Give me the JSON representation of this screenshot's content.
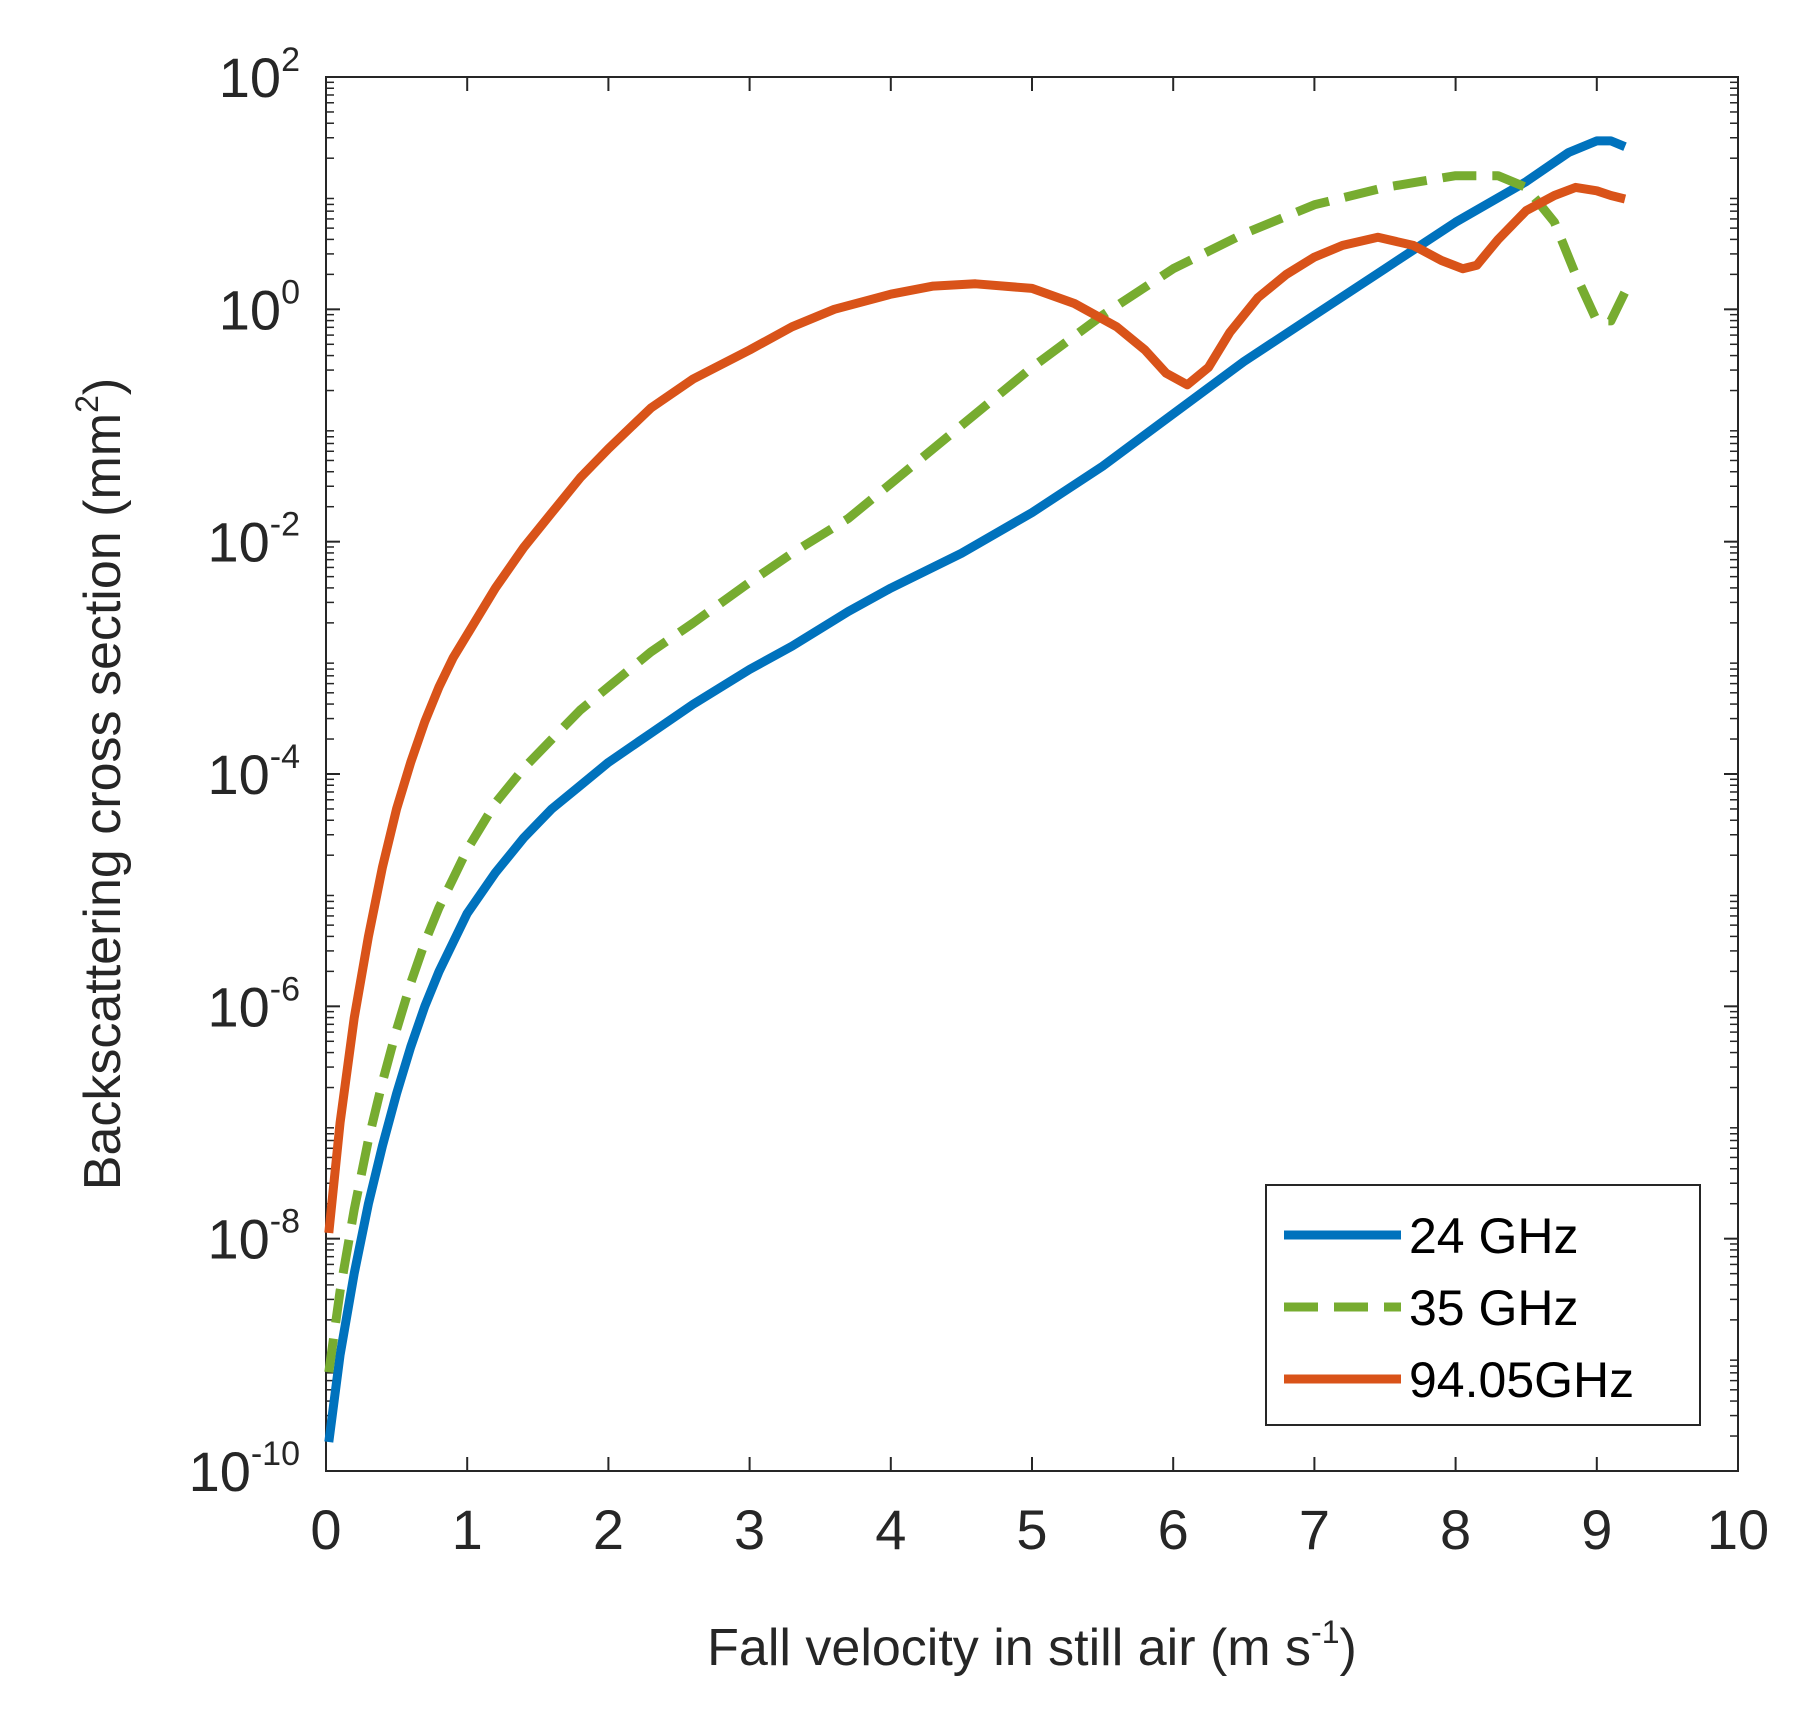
{
  "chart_data": {
    "type": "line",
    "title": "",
    "xlabel": "Fall velocity in still air (m s",
    "xlabel_sup": "-1",
    "xlabel_end": ")",
    "ylabel": "Backscattering cross section (mm",
    "ylabel_sup": "2",
    "ylabel_end": ")",
    "x_range": [
      0,
      10
    ],
    "y_scale": "log",
    "y_range_log10": [
      -10,
      2
    ],
    "x_ticks": [
      "0",
      "1",
      "2",
      "3",
      "4",
      "5",
      "6",
      "7",
      "8",
      "9",
      "10"
    ],
    "y_ticks": [
      {
        "base": "10",
        "exp": "2",
        "log": 2
      },
      {
        "base": "10",
        "exp": "0",
        "log": 0
      },
      {
        "base": "10",
        "exp": "-2",
        "log": -2
      },
      {
        "base": "10",
        "exp": "-4",
        "log": -4
      },
      {
        "base": "10",
        "exp": "-6",
        "log": -6
      },
      {
        "base": "10",
        "exp": "-8",
        "log": -8
      },
      {
        "base": "10",
        "exp": "-10",
        "log": -10
      }
    ],
    "legend_position": "bottom-right",
    "series": [
      {
        "name": "24 GHz",
        "color": "#0072BD",
        "dash": "solid",
        "x": [
          0.02,
          0.1,
          0.2,
          0.3,
          0.4,
          0.5,
          0.6,
          0.7,
          0.8,
          0.9,
          1.0,
          1.2,
          1.4,
          1.6,
          1.8,
          2.0,
          2.3,
          2.6,
          3.0,
          3.3,
          3.7,
          4.0,
          4.5,
          5.0,
          5.5,
          6.0,
          6.5,
          7.0,
          7.5,
          8.0,
          8.5,
          8.8,
          9.0,
          9.1,
          9.2
        ],
        "y_log10": [
          -9.75,
          -9.0,
          -8.3,
          -7.7,
          -7.2,
          -6.75,
          -6.35,
          -6.0,
          -5.7,
          -5.45,
          -5.2,
          -4.85,
          -4.55,
          -4.3,
          -4.1,
          -3.9,
          -3.65,
          -3.4,
          -3.1,
          -2.9,
          -2.6,
          -2.4,
          -2.1,
          -1.75,
          -1.35,
          -0.9,
          -0.45,
          -0.05,
          0.35,
          0.75,
          1.1,
          1.35,
          1.45,
          1.45,
          1.4
        ]
      },
      {
        "name": "35 GHz",
        "color": "#77AC30",
        "dash": "dashed",
        "x": [
          0.02,
          0.1,
          0.2,
          0.3,
          0.4,
          0.5,
          0.6,
          0.7,
          0.8,
          0.9,
          1.0,
          1.2,
          1.4,
          1.6,
          1.8,
          2.0,
          2.3,
          2.6,
          3.0,
          3.3,
          3.7,
          4.0,
          4.5,
          5.0,
          5.5,
          6.0,
          6.5,
          7.0,
          7.5,
          8.0,
          8.3,
          8.5,
          8.7,
          8.85,
          9.0,
          9.1,
          9.2
        ],
        "y_log10": [
          -9.15,
          -8.45,
          -7.75,
          -7.15,
          -6.65,
          -6.2,
          -5.8,
          -5.45,
          -5.15,
          -4.9,
          -4.65,
          -4.25,
          -3.95,
          -3.7,
          -3.45,
          -3.25,
          -2.95,
          -2.7,
          -2.35,
          -2.1,
          -1.8,
          -1.5,
          -1.0,
          -0.5,
          -0.05,
          0.35,
          0.65,
          0.9,
          1.05,
          1.15,
          1.15,
          1.05,
          0.75,
          0.3,
          -0.1,
          -0.1,
          0.15
        ]
      },
      {
        "name": "94.05GHz",
        "color": "#D95319",
        "dash": "solid",
        "x": [
          0.02,
          0.1,
          0.2,
          0.3,
          0.4,
          0.5,
          0.6,
          0.7,
          0.8,
          0.9,
          1.0,
          1.2,
          1.4,
          1.6,
          1.8,
          2.0,
          2.3,
          2.6,
          3.0,
          3.3,
          3.6,
          4.0,
          4.3,
          4.6,
          5.0,
          5.3,
          5.6,
          5.8,
          5.95,
          6.1,
          6.25,
          6.4,
          6.6,
          6.8,
          7.0,
          7.2,
          7.45,
          7.7,
          7.9,
          8.05,
          8.15,
          8.3,
          8.5,
          8.7,
          8.85,
          9.0,
          9.1,
          9.2
        ],
        "y_log10": [
          -7.95,
          -7.0,
          -6.1,
          -5.4,
          -4.8,
          -4.3,
          -3.9,
          -3.55,
          -3.25,
          -3.0,
          -2.8,
          -2.4,
          -2.05,
          -1.75,
          -1.45,
          -1.2,
          -0.85,
          -0.6,
          -0.35,
          -0.15,
          0.0,
          0.13,
          0.2,
          0.22,
          0.18,
          0.05,
          -0.15,
          -0.35,
          -0.55,
          -0.65,
          -0.5,
          -0.2,
          0.1,
          0.3,
          0.45,
          0.55,
          0.62,
          0.55,
          0.42,
          0.35,
          0.38,
          0.6,
          0.85,
          0.98,
          1.05,
          1.02,
          0.98,
          0.95
        ]
      }
    ]
  }
}
